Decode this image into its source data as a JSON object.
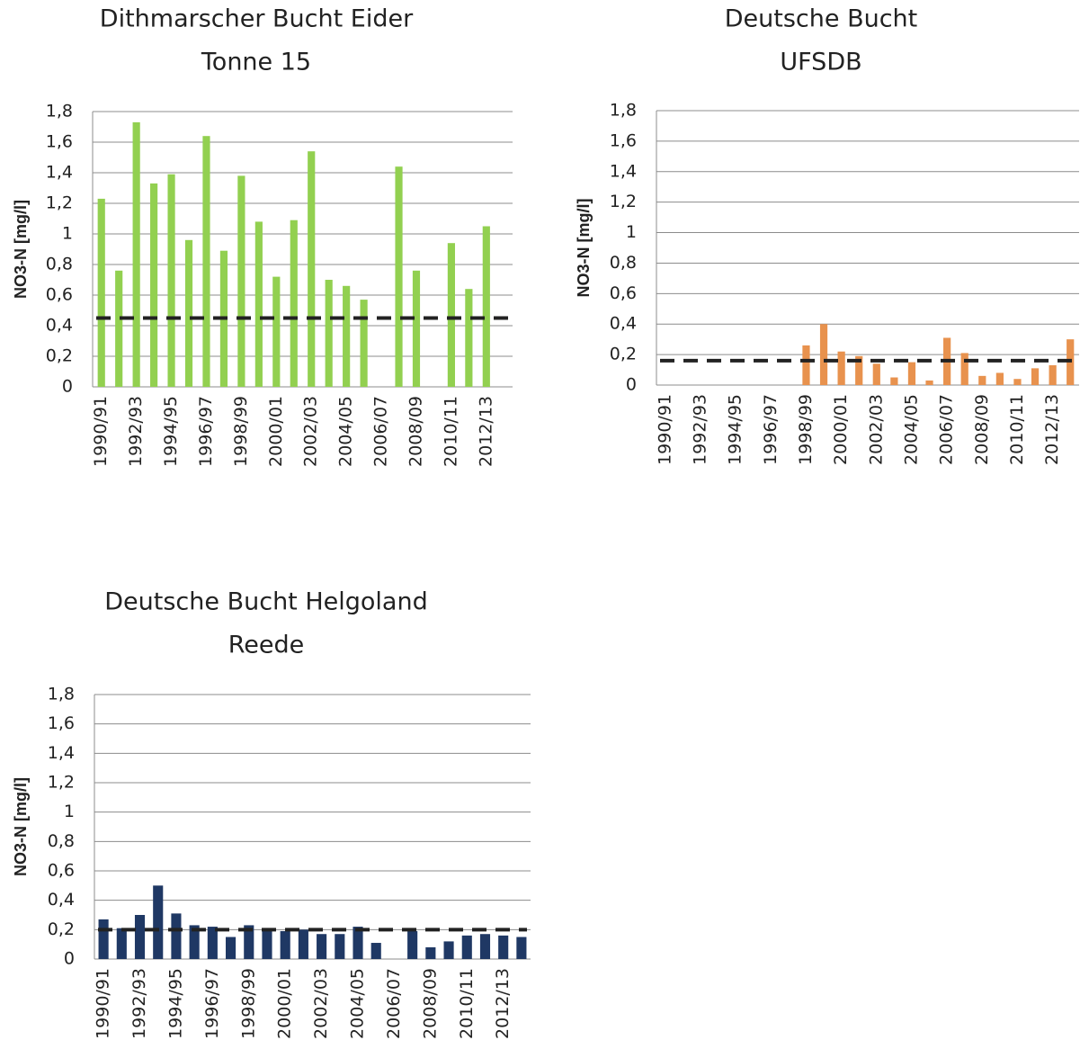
{
  "chart_data": [
    {
      "type": "bar",
      "title": [
        "Dithmarscher  Bucht Eider",
        "Tonne 15"
      ],
      "y_label": "NO3-N [mg/l]",
      "color": "#92d050",
      "categories": [
        "1990/91",
        null,
        "1992/93",
        null,
        "1994/95",
        null,
        "1996/97",
        null,
        "1998/99",
        null,
        "2000/01",
        null,
        "2002/03",
        null,
        "2004/05",
        null,
        "2006/07",
        null,
        "2008/09",
        null,
        "2010/11",
        null,
        "2012/13",
        null
      ],
      "values": [
        1.23,
        0.76,
        1.73,
        1.33,
        1.39,
        0.96,
        1.64,
        0.89,
        1.38,
        1.08,
        0.72,
        1.09,
        1.54,
        0.7,
        0.66,
        0.57,
        null,
        1.44,
        0.76,
        null,
        0.94,
        0.64,
        1.05,
        null
      ],
      "reference_line": 0.45,
      "ylim": [
        0,
        1.8
      ],
      "yticks": [
        0,
        {
          "value": 0.2,
          "label": "0,2"
        },
        {
          "value": 0.4,
          "label": "0,4"
        },
        {
          "value": 0.6,
          "label": "0,6"
        },
        {
          "value": 0.8,
          "label": "0,8"
        },
        1,
        {
          "value": 1.2,
          "label": "1,2"
        },
        {
          "value": 1.4,
          "label": "1,4"
        },
        {
          "value": 1.6,
          "label": "1,6"
        },
        {
          "value": 1.8,
          "label": "1,8"
        }
      ],
      "grid": true
    },
    {
      "type": "bar",
      "title": [
        "Deutsche Bucht",
        "UFSDB"
      ],
      "y_label": "NO3-N [mg/l]",
      "color": "#e8924e",
      "categories": [
        "1990/91",
        null,
        "1992/93",
        null,
        "1994/95",
        null,
        "1996/97",
        null,
        "1998/99",
        null,
        "2000/01",
        null,
        "2002/03",
        null,
        "2004/05",
        null,
        "2006/07",
        null,
        "2008/09",
        null,
        "2010/11",
        null,
        "2012/13",
        null
      ],
      "values": [
        null,
        null,
        null,
        null,
        null,
        null,
        null,
        null,
        0.26,
        0.4,
        0.22,
        0.19,
        0.14,
        0.05,
        0.15,
        0.03,
        0.31,
        0.21,
        0.06,
        0.08,
        0.04,
        0.11,
        0.13,
        0.3
      ],
      "reference_line": 0.16,
      "ylim": [
        0,
        1.8
      ],
      "yticks": [
        0,
        {
          "value": 0.2,
          "label": "0,2"
        },
        {
          "value": 0.4,
          "label": "0,4"
        },
        {
          "value": 0.6,
          "label": "0,6"
        },
        {
          "value": 0.8,
          "label": "0,8"
        },
        1,
        {
          "value": 1.2,
          "label": "1,2"
        },
        {
          "value": 1.4,
          "label": "1,4"
        },
        {
          "value": 1.6,
          "label": "1,6"
        },
        {
          "value": 1.8,
          "label": "1,8"
        }
      ],
      "grid": true
    },
    {
      "type": "bar",
      "title": [
        "Deutsche  Bucht Helgoland",
        "Reede"
      ],
      "y_label": "NO3-N [mg/l]",
      "color": "#1f3864",
      "categories": [
        "1990/91",
        null,
        "1992/93",
        null,
        "1994/95",
        null,
        "1996/97",
        null,
        "1998/99",
        null,
        "2000/01",
        null,
        "2002/03",
        null,
        "2004/05",
        null,
        "2006/07",
        null,
        "2008/09",
        null,
        "2010/11",
        null,
        "2012/13",
        null
      ],
      "values": [
        0.27,
        0.21,
        0.3,
        0.5,
        0.31,
        0.23,
        0.22,
        0.15,
        0.23,
        0.19,
        0.19,
        0.2,
        0.17,
        0.17,
        0.22,
        0.11,
        null,
        0.19,
        0.08,
        0.12,
        0.16,
        0.17,
        0.16,
        0.15
      ],
      "reference_line": 0.2,
      "ylim": [
        0,
        1.8
      ],
      "yticks": [
        0,
        {
          "value": 0.2,
          "label": "0,2"
        },
        {
          "value": 0.4,
          "label": "0,4"
        },
        {
          "value": 0.6,
          "label": "0,6"
        },
        {
          "value": 0.8,
          "label": "0,8"
        },
        1,
        {
          "value": 1.2,
          "label": "1,2"
        },
        {
          "value": 1.4,
          "label": "1,4"
        },
        {
          "value": 1.6,
          "label": "1,6"
        },
        {
          "value": 1.8,
          "label": "1,8"
        }
      ],
      "grid": true
    }
  ]
}
